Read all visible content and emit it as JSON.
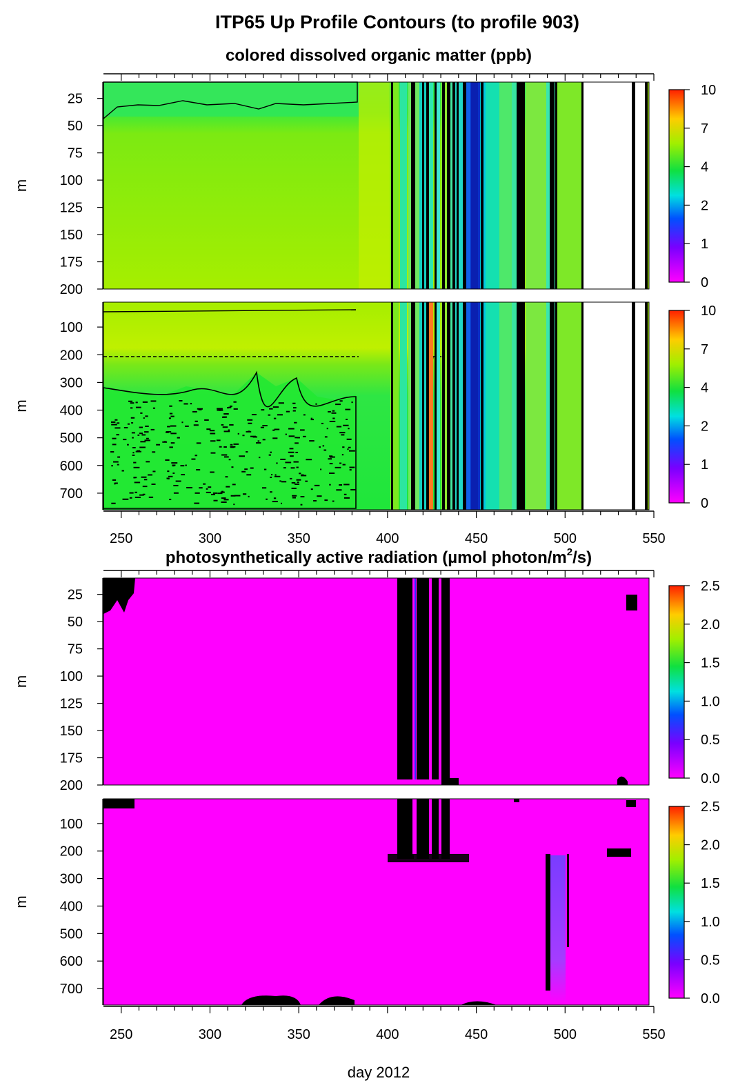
{
  "title": "ITP65 Up Profile Contours (to profile 903)",
  "xlabel": "day 2012",
  "colors": {
    "cdom_base": "#7fea10",
    "cdom_surface": "#2ee64a",
    "cdom_deep": "#22e832",
    "par_base": "#ff00ff",
    "contour": "#000000",
    "gap": "#ffffff"
  },
  "chart_data": [
    {
      "type": "heatmap",
      "title": "colored dissolved organic matter (ppb)",
      "xlim": [
        240,
        550
      ],
      "x_ticks": [
        250,
        300,
        350,
        400,
        450,
        500,
        550
      ],
      "data_extent_x": [
        240,
        548
      ],
      "panels": [
        {
          "name": "upper",
          "ylabel": "m",
          "ylim": [
            200,
            10
          ],
          "y_ticks": [
            25,
            50,
            75,
            100,
            125,
            150,
            175,
            200
          ],
          "colorbar": {
            "ticks": [
              0,
              1,
              2,
              4,
              7,
              10
            ]
          },
          "missing_intervals": [
            [
              510,
              538
            ],
            [
              541,
              546
            ]
          ]
        },
        {
          "name": "lower",
          "ylabel": "m",
          "ylim": [
            760,
            10
          ],
          "y_ticks": [
            100,
            200,
            300,
            400,
            500,
            600,
            700
          ],
          "colorbar": {
            "ticks": [
              0,
              1,
              2,
              4,
              7,
              10
            ]
          },
          "missing_intervals": [
            [
              510,
              538
            ],
            [
              541,
              546
            ]
          ]
        }
      ]
    },
    {
      "type": "heatmap",
      "title": "photosynthetically active radiation (µmol photon/m²/s)",
      "title_main": "photosynthetically active radiation (µmol photon/m",
      "title_sup": "2",
      "title_end": "/s)",
      "xlim": [
        240,
        550
      ],
      "x_ticks": [
        250,
        300,
        350,
        400,
        450,
        500,
        550
      ],
      "data_extent_x": [
        240,
        548
      ],
      "panels": [
        {
          "name": "upper",
          "ylabel": "m",
          "ylim": [
            200,
            10
          ],
          "y_ticks": [
            25,
            50,
            75,
            100,
            125,
            150,
            175,
            200
          ],
          "colorbar": {
            "ticks": [
              "0.0",
              "0.5",
              "1.0",
              "1.5",
              "2.0",
              "2.5"
            ]
          }
        },
        {
          "name": "lower",
          "ylabel": "m",
          "ylim": [
            760,
            10
          ],
          "y_ticks": [
            100,
            200,
            300,
            400,
            500,
            600,
            700
          ],
          "colorbar": {
            "ticks": [
              "0.0",
              "0.5",
              "1.0",
              "1.5",
              "2.0",
              "2.5"
            ]
          }
        }
      ]
    }
  ]
}
